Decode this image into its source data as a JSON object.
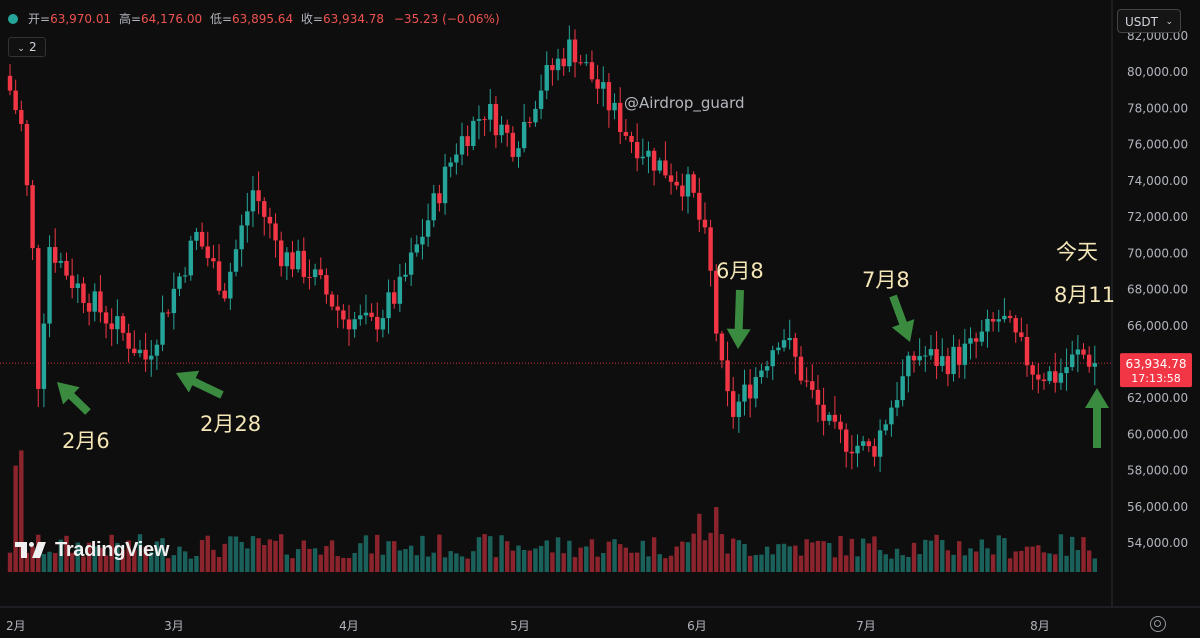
{
  "header": {
    "open_label": "开=",
    "open_value": "63,970.01",
    "high_label": "高=",
    "high_value": "64,176.00",
    "low_label": "低=",
    "low_value": "63,895.64",
    "close_label": "收=",
    "close_value": "63,934.78",
    "change": "−35.23 (−0.06%)",
    "indicator_count": "2"
  },
  "currency_select": "USDT",
  "watermark": "@Airdrop_guard",
  "logo_text": "TradingView",
  "price_badge": {
    "price": "63,934.78",
    "countdown": "17:13:58"
  },
  "colors": {
    "up": "#26a69a",
    "down": "#f23645",
    "arrow": "#3a8a3f",
    "annotation": "#f5e6b8",
    "background": "#0e0e0e"
  },
  "chart_data": {
    "type": "candlestick",
    "y_axis_labels": [
      "54,000.00",
      "56,000.00",
      "58,000.00",
      "60,000.00",
      "62,000.00",
      "64,000.00",
      "66,000.00",
      "68,000.00",
      "70,000.00",
      "72,000.00",
      "74,000.00",
      "76,000.00",
      "78,000.00",
      "80,000.00",
      "82,000.00"
    ],
    "x_axis_labels": [
      "2月",
      "3月",
      "4月",
      "5月",
      "6月",
      "7月",
      "8月"
    ],
    "ylim": [
      52500,
      82000
    ],
    "current_price": 63934.78,
    "annotations": [
      {
        "text": "2月6",
        "points_to_price": 63000
      },
      {
        "text": "2月28",
        "points_to_price": 63800
      },
      {
        "text": "6月8",
        "points_to_price": 65000
      },
      {
        "text": "7月8",
        "points_to_price": 65000
      },
      {
        "text": "今天",
        "points_to_price": 63900
      },
      {
        "text": "8月11",
        "points_to_price": 63900
      }
    ],
    "close_path_approx": [
      {
        "date": "2月1",
        "close": 79000
      },
      {
        "date": "2月3",
        "close": 77000
      },
      {
        "date": "2月5",
        "close": 70000
      },
      {
        "date": "2月6",
        "close": 63000
      },
      {
        "date": "2月8",
        "close": 70500
      },
      {
        "date": "2月12",
        "close": 68500
      },
      {
        "date": "2月18",
        "close": 66500
      },
      {
        "date": "2月25",
        "close": 64200
      },
      {
        "date": "2月28",
        "close": 66500
      },
      {
        "date": "3月5",
        "close": 71000
      },
      {
        "date": "3月10",
        "close": 68000
      },
      {
        "date": "3月15",
        "close": 73500
      },
      {
        "date": "3月20",
        "close": 70000
      },
      {
        "date": "3月25",
        "close": 69000
      },
      {
        "date": "3月31",
        "close": 66500
      },
      {
        "date": "4月5",
        "close": 66000
      },
      {
        "date": "4月10",
        "close": 68000
      },
      {
        "date": "4月15",
        "close": 72000
      },
      {
        "date": "4月20",
        "close": 76000
      },
      {
        "date": "4月25",
        "close": 78000
      },
      {
        "date": "4月30",
        "close": 76000
      },
      {
        "date": "5月5",
        "close": 79500
      },
      {
        "date": "5月10",
        "close": 81500
      },
      {
        "date": "5月15",
        "close": 79000
      },
      {
        "date": "5月20",
        "close": 76500
      },
      {
        "date": "5月25",
        "close": 75000
      },
      {
        "date": "5月31",
        "close": 73500
      },
      {
        "date": "6月3",
        "close": 70000
      },
      {
        "date": "6月5",
        "close": 64000
      },
      {
        "date": "6月7",
        "close": 61000
      },
      {
        "date": "6月12",
        "close": 63500
      },
      {
        "date": "6月16",
        "close": 65800
      },
      {
        "date": "6月20",
        "close": 63000
      },
      {
        "date": "6月25",
        "close": 60000
      },
      {
        "date": "6月29",
        "close": 59500
      },
      {
        "date": "7月2",
        "close": 59000
      },
      {
        "date": "7月6",
        "close": 62000
      },
      {
        "date": "7月10",
        "close": 64500
      },
      {
        "date": "7月15",
        "close": 64000
      },
      {
        "date": "7月20",
        "close": 64800
      },
      {
        "date": "7月25",
        "close": 66500
      },
      {
        "date": "7月31",
        "close": 63500
      },
      {
        "date": "8月4",
        "close": 63200
      },
      {
        "date": "8月8",
        "close": 64500
      },
      {
        "date": "8月11",
        "close": 63934.78
      }
    ]
  }
}
